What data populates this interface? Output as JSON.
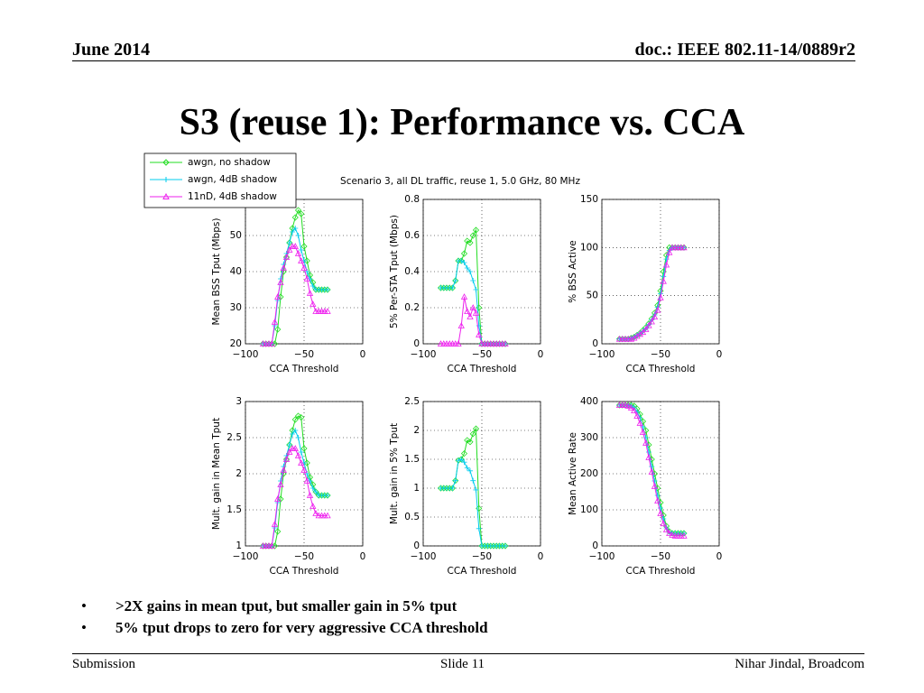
{
  "header": {
    "date": "June 2014",
    "doc": "doc.: IEEE 802.11-14/0889r2"
  },
  "title": "S3 (reuse 1): Performance vs. CCA",
  "figure_title": "Scenario 3, all DL traffic, reuse 1, 5.0 GHz, 80 MHz",
  "bullets": [
    ">2X gains in mean tput, but smaller gain in 5% tput",
    "5% tput drops to zero for very aggressive CCA threshold"
  ],
  "footer": {
    "left": "Submission",
    "center": "Slide 11",
    "right": "Nihar Jindal, Broadcom"
  },
  "chart_data": [
    {
      "type": "line",
      "y_label": "Mean BSS Tput (Mbps)",
      "x_label": "CCA Threshold",
      "legend": "upper left",
      "x": [
        -85,
        -82.5,
        -80,
        -77.5,
        -75,
        -72.5,
        -70,
        -67.5,
        -65,
        -62.5,
        -60,
        -57.5,
        -55,
        -52.5,
        -50,
        -47.5,
        -45,
        -42.5,
        -40,
        -37.5,
        -35,
        -32.5,
        -30
      ],
      "xlim": [
        -100,
        0
      ],
      "xticks": [
        {
          "value": -100,
          "label": "−100"
        },
        {
          "value": -50,
          "label": "−50"
        },
        0
      ],
      "ylim": [
        20,
        60
      ],
      "yticks": [
        20,
        30,
        40,
        50
      ],
      "grid": true,
      "series": [
        {
          "name": "awgn, no shadow",
          "color": "#22dd22",
          "values": [
            20,
            20,
            20,
            20,
            20,
            24,
            33,
            40,
            44,
            48,
            52,
            55,
            57,
            56,
            47,
            43,
            39,
            37,
            35,
            35,
            35,
            35,
            35
          ]
        },
        {
          "name": "awgn, 4dB shadow",
          "color": "#00ccee",
          "values": [
            20,
            20,
            20,
            20,
            25,
            32,
            38,
            42,
            45,
            48,
            51,
            52,
            50,
            46,
            43,
            40,
            38,
            36,
            35,
            35,
            35,
            35,
            35
          ]
        },
        {
          "name": "11nD, 4dB shadow",
          "color": "#ee22ee",
          "values": [
            20,
            20,
            20,
            20,
            26,
            33,
            37,
            41,
            44,
            46,
            47,
            47,
            45,
            43,
            41,
            38,
            34,
            31,
            29,
            29,
            29,
            29,
            29
          ]
        }
      ]
    },
    {
      "type": "line",
      "y_label": "5% Per-STA Tput (Mbps)",
      "x_label": "CCA Threshold",
      "x": [
        -85,
        -82.5,
        -80,
        -77.5,
        -75,
        -72.5,
        -70,
        -67.5,
        -65,
        -62.5,
        -60,
        -57.5,
        -55,
        -52.5,
        -50,
        -47.5,
        -45,
        -42.5,
        -40,
        -37.5,
        -35,
        -32.5,
        -30
      ],
      "xlim": [
        -100,
        0
      ],
      "xticks": [
        {
          "value": -100,
          "label": "−100"
        },
        {
          "value": -50,
          "label": "−50"
        },
        0
      ],
      "ylim": [
        0,
        0.8
      ],
      "yticks": [
        0,
        0.2,
        0.4,
        0.6,
        0.8
      ],
      "grid": true,
      "series": [
        {
          "color": "#22dd22",
          "values": [
            0.31,
            0.31,
            0.31,
            0.31,
            0.31,
            0.35,
            0.46,
            0.46,
            0.5,
            0.57,
            0.56,
            0.6,
            0.63,
            0.2,
            0,
            0,
            0,
            0,
            0,
            0,
            0,
            0,
            0
          ]
        },
        {
          "color": "#00ccee",
          "values": [
            0.31,
            0.31,
            0.31,
            0.31,
            0.31,
            0.35,
            0.46,
            0.46,
            0.45,
            0.42,
            0.4,
            0.35,
            0.3,
            0.1,
            0,
            0,
            0,
            0,
            0,
            0,
            0,
            0,
            0
          ]
        },
        {
          "color": "#ee22ee",
          "values": [
            0,
            0,
            0,
            0,
            0,
            0,
            0,
            0.1,
            0.26,
            0.18,
            0.15,
            0.2,
            0.17,
            0.05,
            0,
            0,
            0,
            0,
            0,
            0,
            0,
            0,
            0
          ]
        }
      ]
    },
    {
      "type": "line",
      "y_label": "% BSS Active",
      "x_label": "CCA Threshold",
      "x": [
        -85,
        -82.5,
        -80,
        -77.5,
        -75,
        -72.5,
        -70,
        -67.5,
        -65,
        -62.5,
        -60,
        -57.5,
        -55,
        -52.5,
        -50,
        -47.5,
        -45,
        -42.5,
        -40,
        -37.5,
        -35,
        -32.5,
        -30
      ],
      "xlim": [
        -100,
        0
      ],
      "xticks": [
        {
          "value": -100,
          "label": "−100"
        },
        {
          "value": -50,
          "label": "−50"
        },
        0
      ],
      "ylim": [
        0,
        150
      ],
      "yticks": [
        0,
        50,
        100,
        150
      ],
      "grid": true,
      "series": [
        {
          "color": "#22dd22",
          "values": [
            5,
            5,
            5,
            5,
            6,
            7,
            9,
            11,
            14,
            17,
            21,
            26,
            32,
            40,
            55,
            75,
            92,
            100,
            100,
            100,
            100,
            100,
            100
          ]
        },
        {
          "color": "#00ccee",
          "values": [
            5,
            5,
            5,
            5,
            6,
            7,
            9,
            11,
            13,
            16,
            20,
            25,
            30,
            38,
            52,
            70,
            88,
            97,
            100,
            100,
            100,
            100,
            100
          ]
        },
        {
          "color": "#ee22ee",
          "values": [
            5,
            5,
            5,
            5,
            5,
            6,
            8,
            10,
            12,
            15,
            19,
            23,
            28,
            35,
            48,
            65,
            82,
            95,
            100,
            100,
            100,
            100,
            100
          ]
        }
      ]
    },
    {
      "type": "line",
      "y_label": "Mult. gain in Mean Tput",
      "x_label": "CCA Threshold",
      "x": [
        -85,
        -82.5,
        -80,
        -77.5,
        -75,
        -72.5,
        -70,
        -67.5,
        -65,
        -62.5,
        -60,
        -57.5,
        -55,
        -52.5,
        -50,
        -47.5,
        -45,
        -42.5,
        -40,
        -37.5,
        -35,
        -32.5,
        -30
      ],
      "xlim": [
        -100,
        0
      ],
      "xticks": [
        {
          "value": -100,
          "label": "−100"
        },
        {
          "value": -50,
          "label": "−50"
        },
        0
      ],
      "ylim": [
        1,
        3
      ],
      "yticks": [
        1,
        1.5,
        2,
        2.5,
        3
      ],
      "grid": true,
      "series": [
        {
          "color": "#22dd22",
          "values": [
            1,
            1,
            1,
            1,
            1,
            1.2,
            1.65,
            2,
            2.2,
            2.4,
            2.6,
            2.75,
            2.8,
            2.78,
            2.35,
            2.15,
            1.95,
            1.85,
            1.75,
            1.7,
            1.7,
            1.7,
            1.7
          ]
        },
        {
          "color": "#00ccee",
          "values": [
            1,
            1,
            1,
            1,
            1.25,
            1.6,
            1.9,
            2.1,
            2.25,
            2.4,
            2.55,
            2.6,
            2.5,
            2.3,
            2.15,
            2,
            1.9,
            1.8,
            1.75,
            1.7,
            1.7,
            1.7,
            1.7
          ]
        },
        {
          "color": "#ee22ee",
          "values": [
            1,
            1,
            1,
            1,
            1.3,
            1.65,
            1.85,
            2.05,
            2.2,
            2.3,
            2.35,
            2.35,
            2.25,
            2.15,
            2.05,
            1.9,
            1.7,
            1.55,
            1.45,
            1.42,
            1.42,
            1.42,
            1.42
          ]
        }
      ]
    },
    {
      "type": "line",
      "y_label": "Mult. gain in 5% Tput",
      "x_label": "CCA Threshold",
      "x": [
        -85,
        -82.5,
        -80,
        -77.5,
        -75,
        -72.5,
        -70,
        -67.5,
        -65,
        -62.5,
        -60,
        -57.5,
        -55,
        -52.5,
        -50,
        -47.5,
        -45,
        -42.5,
        -40,
        -37.5,
        -35,
        -32.5,
        -30
      ],
      "xlim": [
        -100,
        0
      ],
      "xticks": [
        {
          "value": -100,
          "label": "−100"
        },
        {
          "value": -50,
          "label": "−50"
        },
        0
      ],
      "ylim": [
        0,
        2.5
      ],
      "yticks": [
        0,
        0.5,
        1,
        1.5,
        2,
        2.5
      ],
      "grid": true,
      "series": [
        {
          "color": "#22dd22",
          "values": [
            1,
            1,
            1,
            1,
            1,
            1.13,
            1.48,
            1.5,
            1.6,
            1.83,
            1.8,
            1.94,
            2.03,
            0.65,
            0,
            0,
            0,
            0,
            0,
            0,
            0,
            0,
            0
          ]
        },
        {
          "color": "#00ccee",
          "values": [
            1,
            1,
            1,
            1,
            1,
            1.13,
            1.48,
            1.5,
            1.45,
            1.35,
            1.3,
            1.13,
            0.97,
            0.3,
            0,
            0,
            0,
            0,
            0,
            0,
            0,
            0,
            0
          ]
        }
      ]
    },
    {
      "type": "line",
      "y_label": "Mean Active Rate",
      "x_label": "CCA Threshold",
      "x": [
        -85,
        -82.5,
        -80,
        -77.5,
        -75,
        -72.5,
        -70,
        -67.5,
        -65,
        -62.5,
        -60,
        -57.5,
        -55,
        -52.5,
        -50,
        -47.5,
        -45,
        -42.5,
        -40,
        -37.5,
        -35,
        -32.5,
        -30
      ],
      "xlim": [
        -100,
        0
      ],
      "xticks": [
        {
          "value": -100,
          "label": "−100"
        },
        {
          "value": -50,
          "label": "−50"
        },
        0
      ],
      "ylim": [
        0,
        400
      ],
      "yticks": [
        0,
        100,
        200,
        300,
        400
      ],
      "grid": true,
      "series": [
        {
          "color": "#22dd22",
          "values": [
            390,
            390,
            390,
            390,
            390,
            388,
            380,
            365,
            345,
            320,
            280,
            240,
            200,
            160,
            120,
            85,
            55,
            40,
            35,
            35,
            35,
            35,
            35
          ]
        },
        {
          "color": "#00ccee",
          "values": [
            390,
            390,
            390,
            390,
            388,
            383,
            372,
            355,
            330,
            300,
            260,
            220,
            180,
            140,
            105,
            75,
            50,
            38,
            35,
            35,
            35,
            35,
            35
          ]
        },
        {
          "color": "#ee22ee",
          "values": [
            390,
            390,
            390,
            388,
            383,
            375,
            360,
            340,
            315,
            285,
            245,
            205,
            165,
            125,
            90,
            62,
            45,
            35,
            30,
            28,
            28,
            28,
            28
          ]
        }
      ]
    }
  ]
}
